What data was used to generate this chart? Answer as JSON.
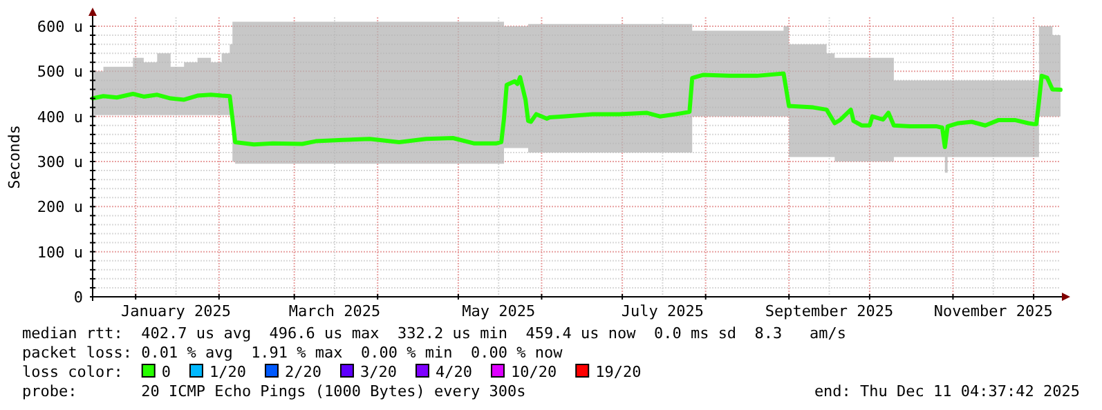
{
  "chart_data": {
    "type": "line",
    "ylabel": "Seconds",
    "xlim": [
      "2024-12-16",
      "2025-12-11"
    ],
    "ylim": [
      0,
      620
    ],
    "yticks": [
      {
        "value": 0,
        "label": "0"
      },
      {
        "value": 20,
        "label": null
      },
      {
        "value": 40,
        "label": null
      },
      {
        "value": 60,
        "label": null
      },
      {
        "value": 80,
        "label": null
      },
      {
        "value": 100,
        "label": "100 u"
      },
      {
        "value": 120,
        "label": null
      },
      {
        "value": 140,
        "label": null
      },
      {
        "value": 160,
        "label": null
      },
      {
        "value": 180,
        "label": null
      },
      {
        "value": 200,
        "label": "200 u"
      },
      {
        "value": 220,
        "label": null
      },
      {
        "value": 240,
        "label": null
      },
      {
        "value": 260,
        "label": null
      },
      {
        "value": 280,
        "label": null
      },
      {
        "value": 300,
        "label": "300 u"
      },
      {
        "value": 320,
        "label": null
      },
      {
        "value": 340,
        "label": null
      },
      {
        "value": 360,
        "label": null
      },
      {
        "value": 380,
        "label": null
      },
      {
        "value": 400,
        "label": "400 u"
      },
      {
        "value": 420,
        "label": null
      },
      {
        "value": 440,
        "label": null
      },
      {
        "value": 460,
        "label": null
      },
      {
        "value": 480,
        "label": null
      },
      {
        "value": 500,
        "label": "500 u"
      },
      {
        "value": 520,
        "label": null
      },
      {
        "value": 540,
        "label": null
      },
      {
        "value": 560,
        "label": null
      },
      {
        "value": 580,
        "label": null
      },
      {
        "value": 600,
        "label": "600 u"
      }
    ],
    "xticks": [
      {
        "value": "2025-01-01",
        "label": null
      },
      {
        "value": "2025-01-16",
        "label": "January 2025"
      },
      {
        "value": "2025-02-01",
        "label": null
      },
      {
        "value": "2025-03-01",
        "label": null
      },
      {
        "value": "2025-03-16",
        "label": "March 2025"
      },
      {
        "value": "2025-04-01",
        "label": null
      },
      {
        "value": "2025-05-01",
        "label": null
      },
      {
        "value": "2025-05-16",
        "label": "May 2025"
      },
      {
        "value": "2025-06-01",
        "label": null
      },
      {
        "value": "2025-07-01",
        "label": null
      },
      {
        "value": "2025-07-16",
        "label": "July 2025"
      },
      {
        "value": "2025-08-01",
        "label": null
      },
      {
        "value": "2025-09-01",
        "label": null
      },
      {
        "value": "2025-09-16",
        "label": "September 2025"
      },
      {
        "value": "2025-10-01",
        "label": null
      },
      {
        "value": "2025-11-01",
        "label": null
      },
      {
        "value": "2025-11-16",
        "label": "November 2025"
      },
      {
        "value": "2025-12-01",
        "label": null
      }
    ],
    "grid": true,
    "legend": "bottom",
    "legend_title": "loss color:",
    "series": [
      {
        "name": "0",
        "color": "#26ff00",
        "x": [
          "2024-12-16",
          "2024-12-20",
          "2024-12-25",
          "2024-12-31",
          "2025-01-04",
          "2025-01-09",
          "2025-01-14",
          "2025-01-19",
          "2025-01-24",
          "2025-01-29",
          "2025-02-02",
          "2025-02-05",
          "2025-02-06",
          "2025-02-07",
          "2025-02-14",
          "2025-02-21",
          "2025-03-04",
          "2025-03-09",
          "2025-03-19",
          "2025-03-29",
          "2025-04-09",
          "2025-04-19",
          "2025-04-29",
          "2025-05-07",
          "2025-05-15",
          "2025-05-17",
          "2025-05-18",
          "2025-05-19",
          "2025-05-22",
          "2025-05-23",
          "2025-05-24",
          "2025-05-26",
          "2025-05-27",
          "2025-05-28",
          "2025-05-30",
          "2025-06-03",
          "2025-06-04",
          "2025-06-09",
          "2025-06-20",
          "2025-06-30",
          "2025-07-10",
          "2025-07-15",
          "2025-07-21",
          "2025-07-26",
          "2025-07-27",
          "2025-07-28",
          "2025-07-31",
          "2025-08-10",
          "2025-08-20",
          "2025-08-30",
          "2025-09-01",
          "2025-09-02",
          "2025-09-10",
          "2025-09-15",
          "2025-09-18",
          "2025-09-20",
          "2025-09-24",
          "2025-09-25",
          "2025-09-28",
          "2025-10-01",
          "2025-10-02",
          "2025-10-06",
          "2025-10-08",
          "2025-10-10",
          "2025-10-16",
          "2025-10-26",
          "2025-10-28",
          "2025-10-29",
          "2025-10-30",
          "2025-11-03",
          "2025-11-08",
          "2025-11-13",
          "2025-11-18",
          "2025-11-24",
          "2025-11-29",
          "2025-12-01",
          "2025-12-02",
          "2025-12-03",
          "2025-12-04",
          "2025-12-06",
          "2025-12-08",
          "2025-12-11"
        ],
        "values": [
          440,
          445,
          442,
          450,
          444,
          448,
          440,
          437,
          446,
          448,
          446,
          445,
          395,
          343,
          338,
          340,
          339,
          345,
          348,
          350,
          343,
          350,
          352,
          340,
          340,
          343,
          395,
          470,
          478,
          472,
          487,
          437,
          390,
          388,
          405,
          395,
          398,
          400,
          405,
          405,
          408,
          400,
          405,
          410,
          485,
          487,
          492,
          490,
          490,
          495,
          423,
          423,
          420,
          415,
          385,
          392,
          415,
          390,
          380,
          380,
          400,
          393,
          408,
          380,
          378,
          378,
          375,
          332,
          378,
          385,
          388,
          380,
          392,
          392,
          385,
          383,
          383,
          434,
          490,
          486,
          460,
          459
        ],
        "lower": [
          403,
          403,
          403,
          403,
          403,
          403,
          403,
          403,
          403,
          403,
          403,
          403,
          300,
          295,
          295,
          295,
          295,
          295,
          295,
          295,
          295,
          295,
          295,
          295,
          295,
          295,
          330,
          330,
          330,
          330,
          330,
          330,
          320,
          320,
          320,
          320,
          320,
          320,
          320,
          320,
          320,
          320,
          320,
          320,
          400,
          400,
          400,
          400,
          400,
          400,
          310,
          310,
          310,
          310,
          300,
          300,
          300,
          300,
          300,
          300,
          300,
          300,
          300,
          310,
          310,
          310,
          310,
          275,
          310,
          310,
          310,
          310,
          310,
          310,
          310,
          310,
          310,
          400,
          400,
          400,
          400,
          400
        ],
        "upper": [
          500,
          510,
          510,
          530,
          520,
          540,
          510,
          520,
          530,
          520,
          540,
          560,
          610,
          610,
          610,
          610,
          610,
          610,
          610,
          610,
          610,
          610,
          610,
          610,
          610,
          610,
          600,
          600,
          600,
          600,
          600,
          600,
          605,
          605,
          605,
          605,
          605,
          605,
          605,
          605,
          605,
          605,
          605,
          605,
          590,
          590,
          590,
          590,
          590,
          600,
          560,
          560,
          560,
          540,
          530,
          530,
          530,
          530,
          530,
          530,
          530,
          530,
          530,
          480,
          480,
          480,
          480,
          480,
          480,
          480,
          480,
          480,
          480,
          480,
          480,
          480,
          480,
          600,
          600,
          600,
          580,
          570
        ]
      },
      {
        "name": "1/20",
        "color": "#00b8ff",
        "values": [
          null
        ]
      },
      {
        "name": "2/20",
        "color": "#0059ff",
        "values": [
          null
        ]
      },
      {
        "name": "3/20",
        "color": "#5e00ff",
        "values": [
          null
        ]
      },
      {
        "name": "4/20",
        "color": "#7e00ff",
        "values": [
          null
        ]
      },
      {
        "name": "10/20",
        "color": "#dd00ff",
        "values": [
          null
        ]
      },
      {
        "name": "19/20",
        "color": "#ff0000",
        "values": [
          null
        ]
      }
    ],
    "annotations": [
      "median rtt:  402.7 us avg  496.6 us max  332.2 us min  459.4 us now  0.0 ms sd  8.3   am/s",
      "packet loss: 0.01 % avg  1.91 % max  0.00 % min  0.00 % now",
      "probe:       20 ICMP Echo Pings (1000 Bytes) every 300s",
      "end: Thu Dec 11 04:37:42 2025"
    ]
  }
}
